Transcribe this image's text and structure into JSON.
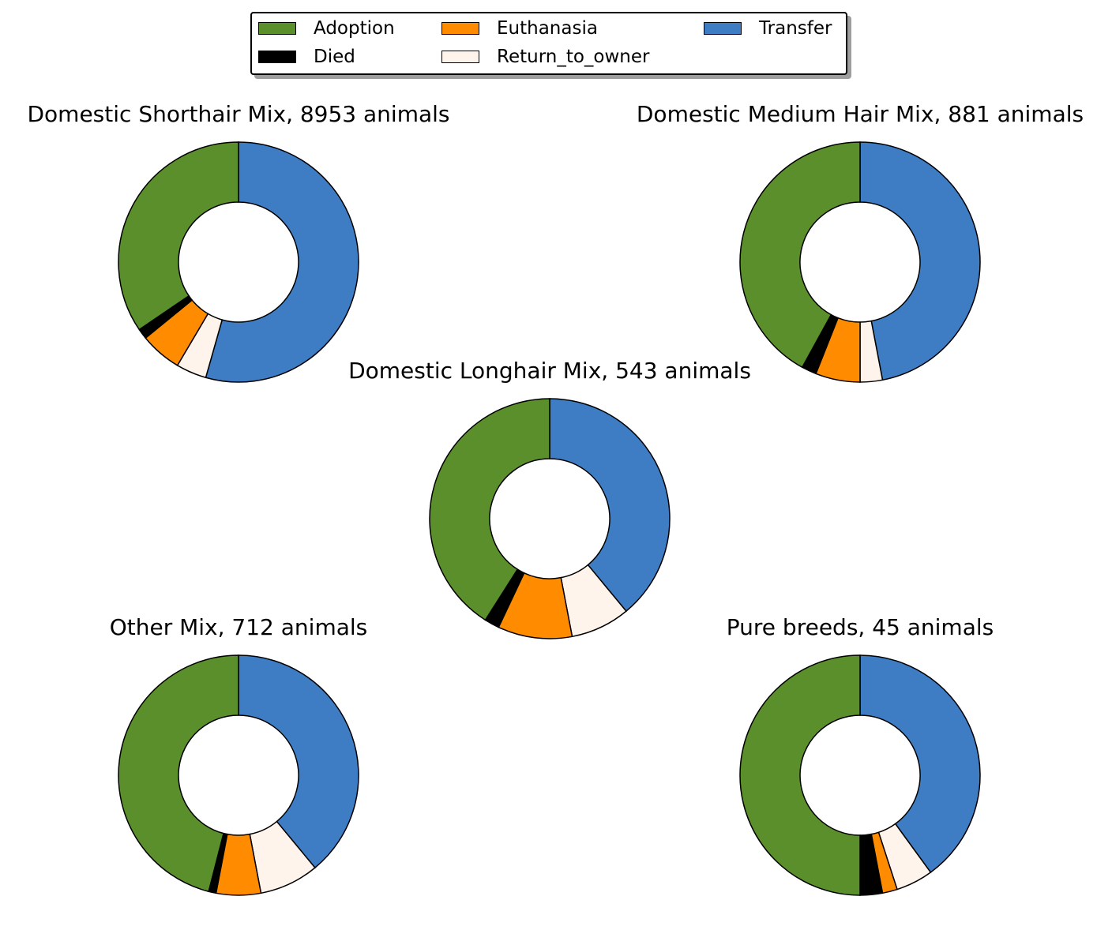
{
  "legend": {
    "items": [
      {
        "label": "Adoption",
        "color": "#5b8f2b"
      },
      {
        "label": "Euthanasia",
        "color": "#ff8c00"
      },
      {
        "label": "Transfer",
        "color": "#3e7dc4"
      },
      {
        "label": "Died",
        "color": "#000000"
      },
      {
        "label": "Return_to_owner",
        "color": "#fff4eb"
      }
    ]
  },
  "chart_data": [
    {
      "type": "pie",
      "title": "Domestic Shorthair Mix, 8953 animals",
      "categories": [
        "Transfer",
        "Return_to_owner",
        "Euthanasia",
        "Died",
        "Adoption"
      ],
      "values": [
        0.544,
        0.041,
        0.056,
        0.014,
        0.345
      ],
      "colors": [
        "#3e7dc4",
        "#fff4eb",
        "#ff8c00",
        "#000000",
        "#5b8f2b"
      ],
      "donut": true
    },
    {
      "type": "pie",
      "title": "Domestic Medium Hair Mix, 881 animals",
      "categories": [
        "Transfer",
        "Return_to_owner",
        "Euthanasia",
        "Died",
        "Adoption"
      ],
      "values": [
        0.47,
        0.03,
        0.06,
        0.02,
        0.42
      ],
      "colors": [
        "#3e7dc4",
        "#fff4eb",
        "#ff8c00",
        "#000000",
        "#5b8f2b"
      ],
      "donut": true
    },
    {
      "type": "pie",
      "title": "Domestic Longhair Mix, 543 animals",
      "categories": [
        "Transfer",
        "Return_to_owner",
        "Euthanasia",
        "Died",
        "Adoption"
      ],
      "values": [
        0.39,
        0.08,
        0.1,
        0.02,
        0.41
      ],
      "colors": [
        "#3e7dc4",
        "#fff4eb",
        "#ff8c00",
        "#000000",
        "#5b8f2b"
      ],
      "donut": true
    },
    {
      "type": "pie",
      "title": "Other Mix, 712 animals",
      "categories": [
        "Transfer",
        "Return_to_owner",
        "Euthanasia",
        "Died",
        "Adoption"
      ],
      "values": [
        0.39,
        0.08,
        0.06,
        0.01,
        0.46
      ],
      "colors": [
        "#3e7dc4",
        "#fff4eb",
        "#ff8c00",
        "#000000",
        "#5b8f2b"
      ],
      "donut": true
    },
    {
      "type": "pie",
      "title": "Pure breeds, 45 animals",
      "categories": [
        "Transfer",
        "Return_to_owner",
        "Euthanasia",
        "Died",
        "Adoption"
      ],
      "values": [
        0.4,
        0.05,
        0.02,
        0.03,
        0.5
      ],
      "colors": [
        "#3e7dc4",
        "#fff4eb",
        "#ff8c00",
        "#000000",
        "#5b8f2b"
      ],
      "donut": true
    }
  ]
}
